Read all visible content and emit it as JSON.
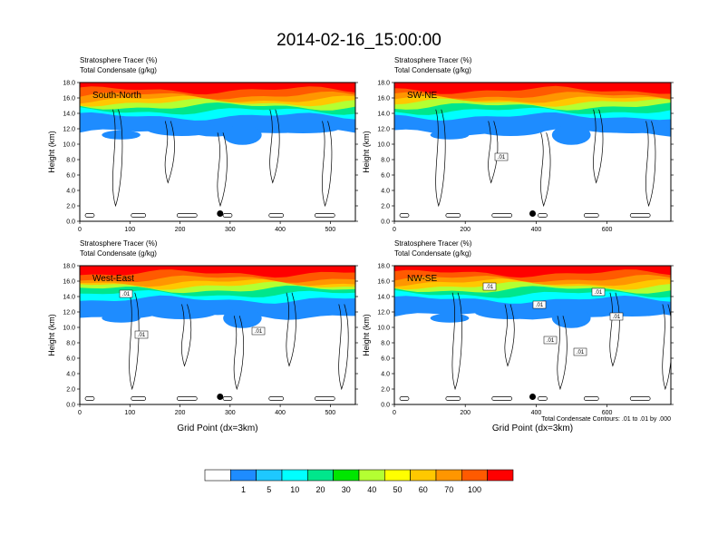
{
  "figure": {
    "title": "2014-02-16_15:00:00",
    "contour_note": "Total Condensate Contours: .01 to .01 by .000",
    "colors": {
      "background": "#ffffff",
      "high": "#ff0000"
    }
  },
  "panel_titles": {
    "line1": "Stratosphere Tracer   (%)",
    "line2": "Total Condensate   (g/kg)"
  },
  "axes": {
    "ylabel": "Height (km)",
    "xlabel": "Grid Point (dx=3km)",
    "yticks": [
      "0.0",
      "2.0",
      "4.0",
      "6.0",
      "8.0",
      "10.0",
      "12.0",
      "14.0",
      "16.0",
      "18.0"
    ]
  },
  "colorbar": {
    "labels": [
      "1",
      "5",
      "10",
      "20",
      "30",
      "40",
      "50",
      "60",
      "70",
      "100"
    ],
    "colors": [
      "#ffffff",
      "#1e8cff",
      "#1ec8ff",
      "#00ffff",
      "#00e68c",
      "#00e600",
      "#b4ff32",
      "#ffff00",
      "#ffc800",
      "#ff9600",
      "#ff5a00",
      "#ff0000"
    ]
  },
  "chart_data": [
    {
      "type": "heatmap",
      "panel_label": "South-North",
      "xlim": [
        0,
        550
      ],
      "xticks": [
        "0",
        "100",
        "200",
        "300",
        "400",
        "500"
      ],
      "ylim": [
        0,
        18
      ],
      "marker_x": 280,
      "marker_y": 1.0,
      "contour_labels": []
    },
    {
      "type": "heatmap",
      "panel_label": "SW-NE",
      "xlim": [
        0,
        780
      ],
      "xticks": [
        "0",
        "200",
        "400",
        "600"
      ],
      "ylim": [
        0,
        18
      ],
      "marker_x": 390,
      "marker_y": 1.0,
      "contour_labels": [
        ".01"
      ]
    },
    {
      "type": "heatmap",
      "panel_label": "West-East",
      "xlim": [
        0,
        550
      ],
      "xticks": [
        "0",
        "100",
        "200",
        "300",
        "400",
        "500"
      ],
      "ylim": [
        0,
        18
      ],
      "marker_x": 280,
      "marker_y": 1.0,
      "contour_labels": [
        ".01",
        ".01",
        ".01"
      ]
    },
    {
      "type": "heatmap",
      "panel_label": "NW-SE",
      "xlim": [
        0,
        780
      ],
      "xticks": [
        "0",
        "200",
        "400",
        "600"
      ],
      "ylim": [
        0,
        18
      ],
      "marker_x": 390,
      "marker_y": 1.0,
      "contour_labels": [
        ".01",
        ".01",
        ".01",
        ".01",
        ".01",
        ".01"
      ]
    }
  ]
}
